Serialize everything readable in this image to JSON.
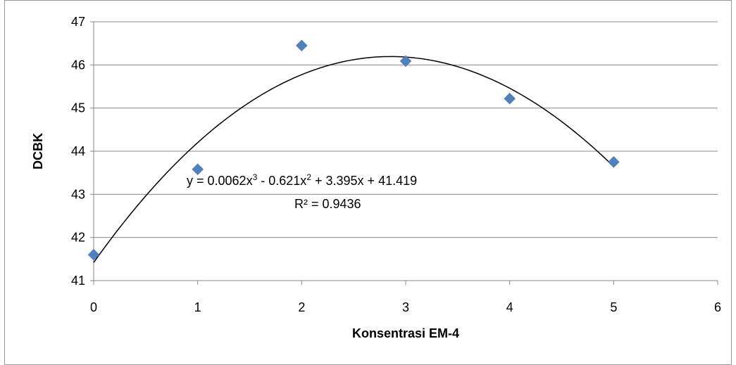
{
  "chart_data": {
    "type": "scatter",
    "xlabel": "Konsentrasi EM-4",
    "ylabel": "DCBK",
    "xlim": [
      0,
      6
    ],
    "ylim": [
      41,
      47
    ],
    "x_ticks": [
      "0",
      "1",
      "2",
      "3",
      "4",
      "5",
      "6"
    ],
    "y_ticks": [
      "41",
      "42",
      "43",
      "44",
      "45",
      "46",
      "47"
    ],
    "grid": "horizontal",
    "legend": "none",
    "series": [
      {
        "marker": "diamond",
        "color": "#4F81BD",
        "points": [
          {
            "x": 0,
            "y": 41.6
          },
          {
            "x": 1,
            "y": 43.58
          },
          {
            "x": 2,
            "y": 46.45
          },
          {
            "x": 3,
            "y": 46.09
          },
          {
            "x": 4,
            "y": 45.22
          },
          {
            "x": 5,
            "y": 43.75
          }
        ]
      }
    ],
    "trendline": {
      "type": "polynomial",
      "color": "#000000",
      "range": [
        0,
        5
      ],
      "coefficients": [
        0.0062,
        -0.621,
        3.395,
        41.419
      ],
      "equation_label": {
        "prefix": "y = 0.0062x",
        "exp1": "3",
        "middle": " - 0.621x",
        "exp2": "2",
        "suffix": " + 3.395x + 41.419"
      },
      "r2_label": "R² = 0.9436"
    }
  }
}
